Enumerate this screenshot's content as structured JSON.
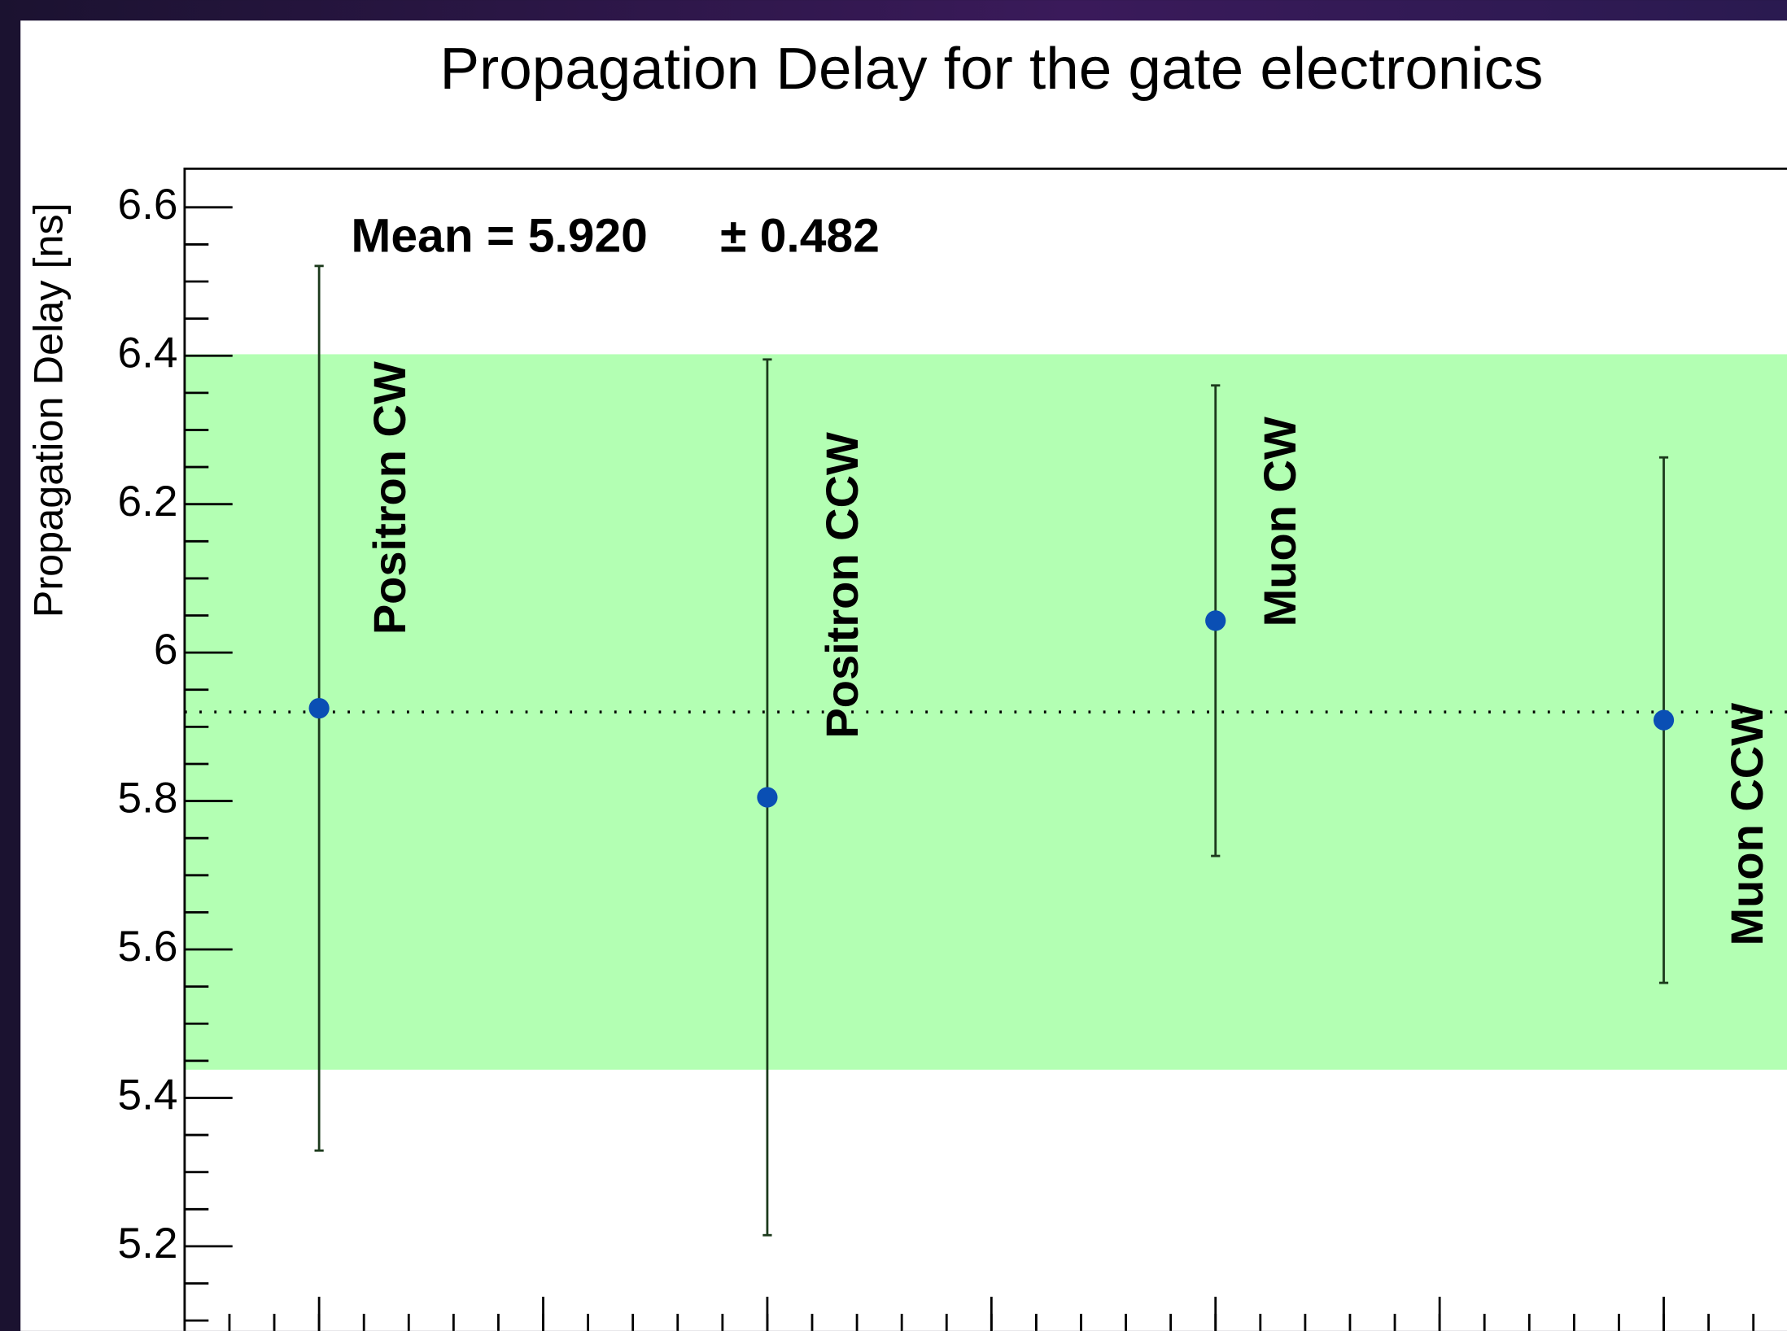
{
  "chart_data": {
    "type": "scatter",
    "title": "Propagation Delay for the gate electronics",
    "ylabel": "Propagation Delay [ns]",
    "x": [
      1,
      2,
      3,
      4
    ],
    "values": [
      5.925,
      5.805,
      6.043,
      5.909
    ],
    "errors": [
      0.596,
      0.59,
      0.317,
      0.354
    ],
    "labels": [
      "Positron CW",
      "Positron CCW",
      "Muon CW",
      "Muon CCW"
    ],
    "color": "#0a4fb4",
    "error_color": "#1c3a1c",
    "mean": 5.92,
    "band": [
      5.438,
      6.402
    ],
    "band_color": "#b3ffb3",
    "mean_label": "Mean = 5.920",
    "sigma_label": "± 0.482",
    "xlim": [
      0.7,
      4.275
    ],
    "xticks": [
      1,
      1.5,
      2,
      2.5,
      3,
      3.5,
      4
    ],
    "ylim": [
      5.086,
      6.652
    ],
    "yticks": [
      5.2,
      5.4,
      5.6,
      5.8,
      6,
      6.2,
      6.4,
      6.6
    ]
  }
}
